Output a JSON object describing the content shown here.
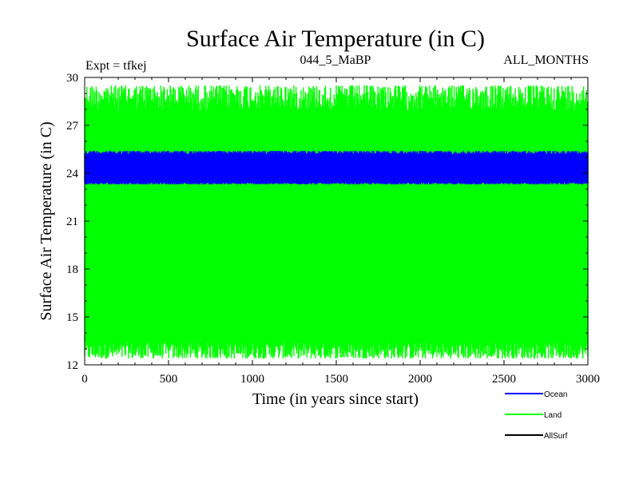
{
  "chart_data": {
    "type": "line",
    "title": "Surface Air Temperature (in C)",
    "subtitle_left": "Expt = tfkej",
    "subtitle_center": "044_5_MaBP",
    "subtitle_right": "ALL_MONTHS",
    "xlabel": "Time (in years since start)",
    "ylabel": "Surface Air Temperature (in C)",
    "xlim": [
      0,
      3000
    ],
    "ylim": [
      12,
      30
    ],
    "xticks": [
      0,
      500,
      1000,
      1500,
      2000,
      2500,
      3000
    ],
    "yticks": [
      12,
      15,
      18,
      21,
      24,
      27,
      30
    ],
    "grid": false,
    "legend_position": "bottom-right",
    "series": [
      {
        "name": "Land",
        "color": "#00ff00",
        "mean": 20.8,
        "min": 12.4,
        "max": 29.5
      },
      {
        "name": "Ocean",
        "color": "#0000ff",
        "mean": 24.3,
        "min": 23.3,
        "max": 25.4
      },
      {
        "name": "AllSurf",
        "color": "#000000"
      }
    ],
    "legend_order": [
      "Ocean",
      "Land",
      "AllSurf"
    ]
  }
}
